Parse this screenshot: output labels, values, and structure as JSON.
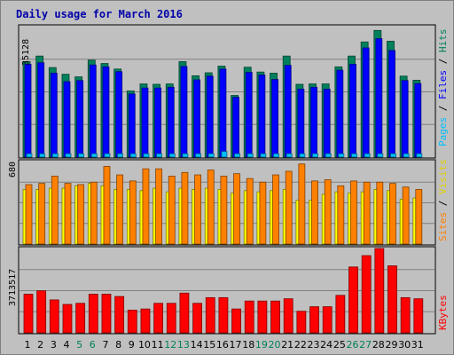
{
  "colors": {
    "background": "#c0c0c0",
    "title": "#0000aa",
    "hits": "#00805c",
    "files": "#0000ff",
    "pages": "#00c0ff",
    "visits": "#ffff00",
    "sites": "#ff8000",
    "kbytes": "#ff0000",
    "weekend_day": "#00805c",
    "weekday": "#000000",
    "axis_label": "#000000",
    "gridline": "#808080"
  },
  "chart_data": {
    "type": "bar",
    "title": "Daily usage for March 2016",
    "categories": [
      "1",
      "2",
      "3",
      "4",
      "5",
      "6",
      "7",
      "8",
      "9",
      "10",
      "11",
      "12",
      "13",
      "14",
      "15",
      "16",
      "17",
      "18",
      "19",
      "20",
      "21",
      "22",
      "23",
      "24",
      "25",
      "26",
      "27",
      "28",
      "29",
      "30",
      "31"
    ],
    "weekend_days": [
      "5",
      "6",
      "12",
      "13",
      "19",
      "20",
      "26",
      "27"
    ],
    "panels": [
      {
        "id": "hits_files_pages",
        "max_label": "35128",
        "ymax": 35128,
        "legend": [
          "Pages",
          "Files",
          "Hits"
        ],
        "series": [
          {
            "name": "Hits",
            "values": [
              25700,
              27200,
              24100,
              22300,
              21600,
              26100,
              25200,
              23700,
              17800,
              19700,
              19600,
              19700,
              25700,
              21900,
              22700,
              24500,
              16600,
              24200,
              22900,
              22600,
              27200,
              19600,
              19700,
              19700,
              24300,
              27200,
              31000,
              34100,
              31200,
              21800,
              20700
            ]
          },
          {
            "name": "Files",
            "values": [
              25000,
              25400,
              22600,
              20300,
              20600,
              24800,
              24300,
              23000,
              17000,
              18600,
              18600,
              18800,
              24400,
              20800,
              21800,
              23700,
              16100,
              22800,
              22100,
              20900,
              24700,
              18300,
              18800,
              18300,
              23400,
              25000,
              29400,
              31900,
              28700,
              20600,
              19800
            ]
          },
          {
            "name": "Pages",
            "values": [
              900,
              900,
              900,
              900,
              900,
              900,
              900,
              900,
              900,
              900,
              900,
              900,
              900,
              900,
              900,
              1500,
              900,
              900,
              900,
              900,
              900,
              900,
              900,
              900,
              900,
              900,
              900,
              900,
              900,
              900,
              900
            ]
          }
        ]
      },
      {
        "id": "sites_visits",
        "max_label": "680",
        "ymax": 680,
        "legend": [
          "Sites",
          "Visits"
        ],
        "series": [
          {
            "name": "Visits",
            "values": [
              450,
              450,
              460,
              460,
              480,
              500,
              480,
              450,
              450,
              440,
              460,
              430,
              460,
              450,
              460,
              450,
              420,
              440,
              430,
              440,
              450,
              360,
              360,
              410,
              430,
              420,
              430,
              450,
              440,
              370,
              380
            ]
          },
          {
            "name": "Sites",
            "values": [
              490,
              500,
              560,
              500,
              490,
              510,
              640,
              570,
              520,
              620,
              620,
              560,
              590,
              570,
              610,
              560,
              580,
              540,
              510,
              570,
              600,
              660,
              520,
              530,
              480,
              520,
              510,
              510,
              500,
              470,
              450
            ]
          }
        ]
      },
      {
        "id": "kbytes",
        "max_label": "3713517",
        "ymax": 3713517,
        "legend": [
          "KBytes"
        ],
        "series": [
          {
            "name": "KBytes",
            "values": [
              1700000,
              1850000,
              1450000,
              1250000,
              1300000,
              1700000,
              1700000,
              1600000,
              1000000,
              1050000,
              1300000,
              1300000,
              1750000,
              1300000,
              1550000,
              1550000,
              1050000,
              1400000,
              1400000,
              1400000,
              1500000,
              950000,
              1150000,
              1150000,
              1650000,
              2900000,
              3400000,
              3713517,
              2950000,
              1550000,
              1500000
            ]
          }
        ]
      }
    ]
  }
}
